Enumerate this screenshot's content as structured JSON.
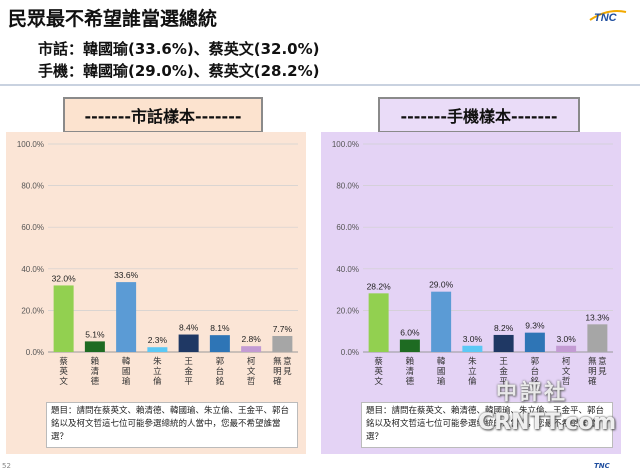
{
  "header": {
    "title": "民眾最不希望誰當選總統",
    "line1": "市話：韓國瑜(33.6%)、蔡英文(32.0%)",
    "line2": "手機：韓國瑜(29.0%)、蔡英文(28.2%)"
  },
  "logo": "TNC",
  "watermark": {
    "line1": "中評社",
    "line2": "CRNTT.com"
  },
  "footer_logo": "TNC",
  "page_number": "52",
  "chart_data": [
    {
      "type": "bar",
      "title": "-------市話樣本-------",
      "categories": [
        "蔡英文",
        "賴清德",
        "韓國瑜",
        "朱立倫",
        "王金平",
        "郭台銘",
        "柯文哲",
        "無明確意見"
      ],
      "values": [
        32.0,
        5.1,
        33.6,
        2.3,
        8.4,
        8.1,
        2.8,
        7.7
      ],
      "value_labels": [
        "32.0%",
        "5.1%",
        "33.6%",
        "2.3%",
        "8.4%",
        "8.1%",
        "2.8%",
        "7.7%"
      ],
      "y_ticks": [
        "0.0%",
        "20.0%",
        "40.0%",
        "60.0%",
        "80.0%",
        "100.0%"
      ],
      "ylim": [
        0,
        100
      ],
      "grid": true,
      "colors": [
        "#92d050",
        "#1e6b22",
        "#5b9bd5",
        "#5bc8f5",
        "#1f3864",
        "#2e75b6",
        "#c39bd3",
        "#a6a6a6"
      ],
      "question": "題目：請問在蔡英文、賴清德、韓國瑜、朱立倫、王金平、郭台銘以及柯文哲這七位可能參選總統的人當中，您最不希望誰當選？"
    },
    {
      "type": "bar",
      "title": "-------手機樣本-------",
      "categories": [
        "蔡英文",
        "賴清德",
        "韓國瑜",
        "朱立倫",
        "王金平",
        "郭台銘",
        "柯文哲",
        "無明確意見"
      ],
      "values": [
        28.2,
        6.0,
        29.0,
        3.0,
        8.2,
        9.3,
        3.0,
        13.3
      ],
      "value_labels": [
        "28.2%",
        "6.0%",
        "29.0%",
        "3.0%",
        "8.2%",
        "9.3%",
        "3.0%",
        "13.3%"
      ],
      "y_ticks": [
        "0.0%",
        "20.0%",
        "40.0%",
        "60.0%",
        "80.0%",
        "100.0%"
      ],
      "ylim": [
        0,
        100
      ],
      "grid": true,
      "colors": [
        "#92d050",
        "#1e6b22",
        "#5b9bd5",
        "#5bc8f5",
        "#1f3864",
        "#2e75b6",
        "#c39bd3",
        "#a6a6a6"
      ],
      "question": "題目：請問在蔡英文、賴清德、韓國瑜、朱立倫、王金平、郭台銘以及柯文哲這七位可能參選總統的人當中，您最不希望誰當選？"
    }
  ]
}
